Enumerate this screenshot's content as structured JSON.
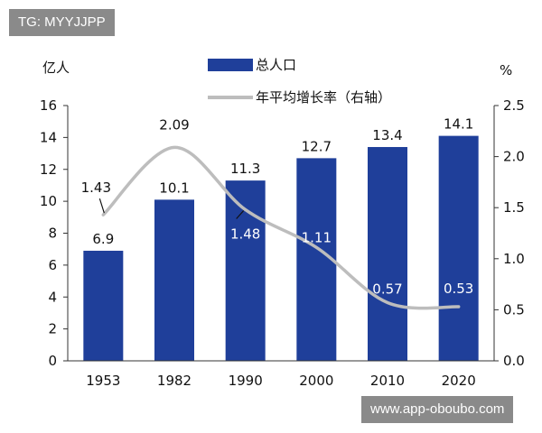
{
  "watermarks": {
    "top": "TG: MYYJJPP",
    "bottom": "www.app-oboubo.com"
  },
  "chart_data": {
    "type": "bar",
    "categories": [
      "1953",
      "1982",
      "1990",
      "2000",
      "2010",
      "2020"
    ],
    "left_unit": "亿人",
    "right_unit": "%",
    "ylim": [
      0,
      16
    ],
    "y_ticks": [
      0,
      2,
      4,
      6,
      8,
      10,
      12,
      14,
      16
    ],
    "y2lim": [
      0.0,
      2.5
    ],
    "y2_ticks": [
      "0.0",
      "0.5",
      "1.0",
      "1.5",
      "2.0",
      "2.5"
    ],
    "grid": false,
    "legend_position": "top",
    "series": [
      {
        "name": "总人口",
        "type": "bar",
        "axis": "left",
        "color": "#1f3f9a",
        "values": [
          6.9,
          10.1,
          11.3,
          12.7,
          13.4,
          14.1
        ],
        "labels": [
          "6.9",
          "10.1",
          "11.3",
          "12.7",
          "13.4",
          "14.1"
        ]
      },
      {
        "name": "年平均增长率（右轴）",
        "type": "line",
        "axis": "right",
        "color": "#bdbdbd",
        "values": [
          1.43,
          2.09,
          1.48,
          1.11,
          0.57,
          0.53
        ],
        "labels": [
          "1.43",
          "2.09",
          "1.48",
          "1.11",
          "0.57",
          "0.53"
        ]
      }
    ]
  }
}
